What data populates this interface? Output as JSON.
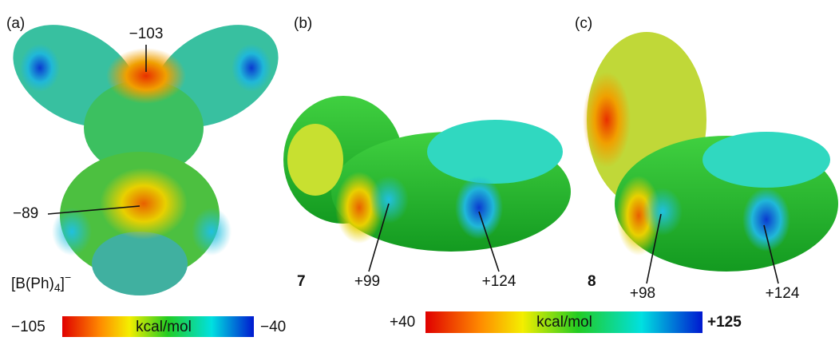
{
  "panels": [
    {
      "label": "(a)",
      "compound": {
        "base": "[B(Ph)",
        "sub": "4",
        "close": "]",
        "sup": "−"
      },
      "annotations": [
        "−103",
        "−89"
      ]
    },
    {
      "label": "(b)",
      "compound": "7",
      "annotations": [
        "+99",
        "+124"
      ]
    },
    {
      "label": "(c)",
      "compound": "8",
      "annotations": [
        "+98",
        "+124"
      ]
    }
  ],
  "colorbars": [
    {
      "min": "−105",
      "unit": "kcal/mol",
      "max": "−40"
    },
    {
      "min": "+40",
      "unit": "kcal/mol",
      "max": "+125"
    }
  ]
}
